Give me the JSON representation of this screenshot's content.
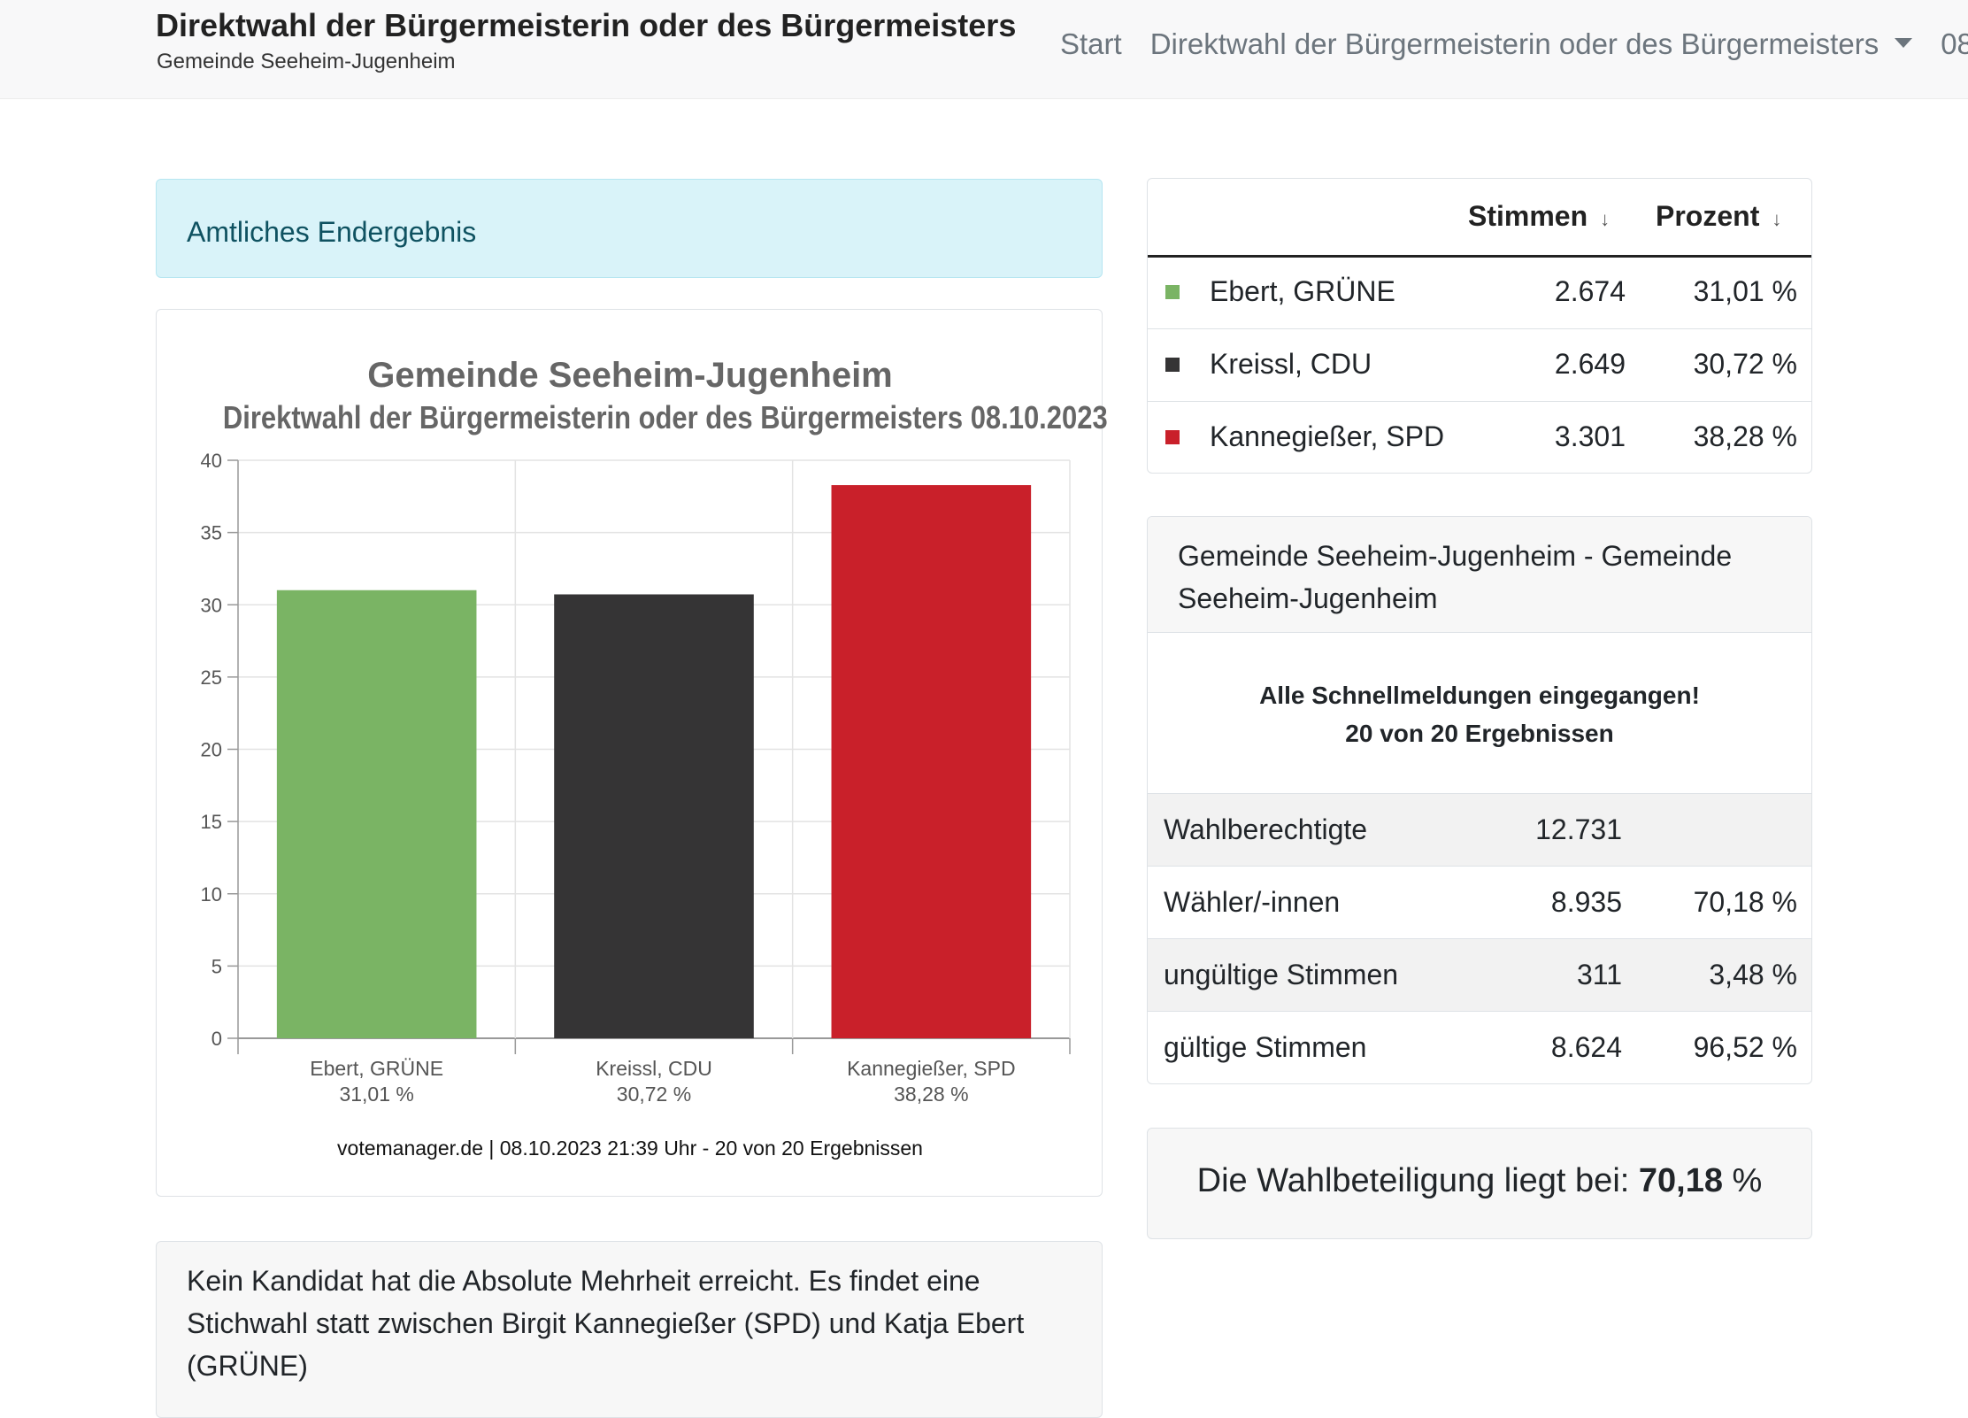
{
  "header": {
    "title": "Direktwahl der Bürgermeisterin oder des Bürgermeisters",
    "subtitle": "Gemeinde Seeheim-Jugenheim",
    "nav": {
      "start": "Start",
      "election": "Direktwahl der Bürgermeisterin oder des Bürgermeisters",
      "date_truncated": "08"
    }
  },
  "alert": {
    "text": "Amtliches Endergebnis"
  },
  "chart_card": {
    "footer": "votemanager.de | 08.10.2023 21:39 Uhr - 20 von 20 Ergebnissen"
  },
  "chart_data": {
    "type": "bar",
    "title": "Gemeinde Seeheim-Jugenheim",
    "subtitle": "Direktwahl der Bürgermeisterin oder des Bürgermeisters 08.10.2023",
    "categories": [
      "Ebert, GRÜNE",
      "Kreissl, CDU",
      "Kannegießer, SPD"
    ],
    "category_sublabels": [
      "31,01 %",
      "30,72 %",
      "38,28 %"
    ],
    "values": [
      31.01,
      30.72,
      38.28
    ],
    "colors": [
      "#7ab464",
      "#353435",
      "#c9202a"
    ],
    "ylim": [
      0,
      40
    ],
    "yticks": [
      "0",
      "5",
      "10",
      "15",
      "20",
      "25",
      "30",
      "35",
      "40"
    ],
    "xlabel": "",
    "ylabel": "",
    "grid": true
  },
  "results": {
    "col_votes": "Stimmen",
    "col_percent": "Prozent",
    "sort_arrow": "↓",
    "rows": [
      {
        "name": "Ebert, GRÜNE",
        "votes": "2.674",
        "percent": "31,01 %",
        "color": "#7ab464"
      },
      {
        "name": "Kreissl, CDU",
        "votes": "2.649",
        "percent": "30,72 %",
        "color": "#353435"
      },
      {
        "name": "Kannegießer, SPD",
        "votes": "3.301",
        "percent": "38,28 %",
        "color": "#c9202a"
      }
    ]
  },
  "stats": {
    "header": "Gemeinde Seeheim-Jugenheim - Gemeinde Seeheim-Jugenheim",
    "message_line1": "Alle Schnellmeldungen eingegangen!",
    "message_line2": "20 von 20 Ergebnissen",
    "rows": [
      {
        "label": "Wahlberechtigte",
        "value": "12.731",
        "percent": ""
      },
      {
        "label": "Wähler/-innen",
        "value": "8.935",
        "percent": "70,18 %"
      },
      {
        "label": "ungültige Stimmen",
        "value": "311",
        "percent": "3,48 %"
      },
      {
        "label": "gültige Stimmen",
        "value": "8.624",
        "percent": "96,52 %"
      }
    ]
  },
  "turnout": {
    "prefix": "Die Wahlbeteiligung liegt bei:",
    "value": "70,18",
    "suffix": "%"
  },
  "note": {
    "text": "Kein Kandidat hat die Absolute Mehrheit erreicht. Es findet eine Stichwahl statt zwischen Birgit Kannegießer (SPD) und Katja Ebert (GRÜNE)"
  }
}
